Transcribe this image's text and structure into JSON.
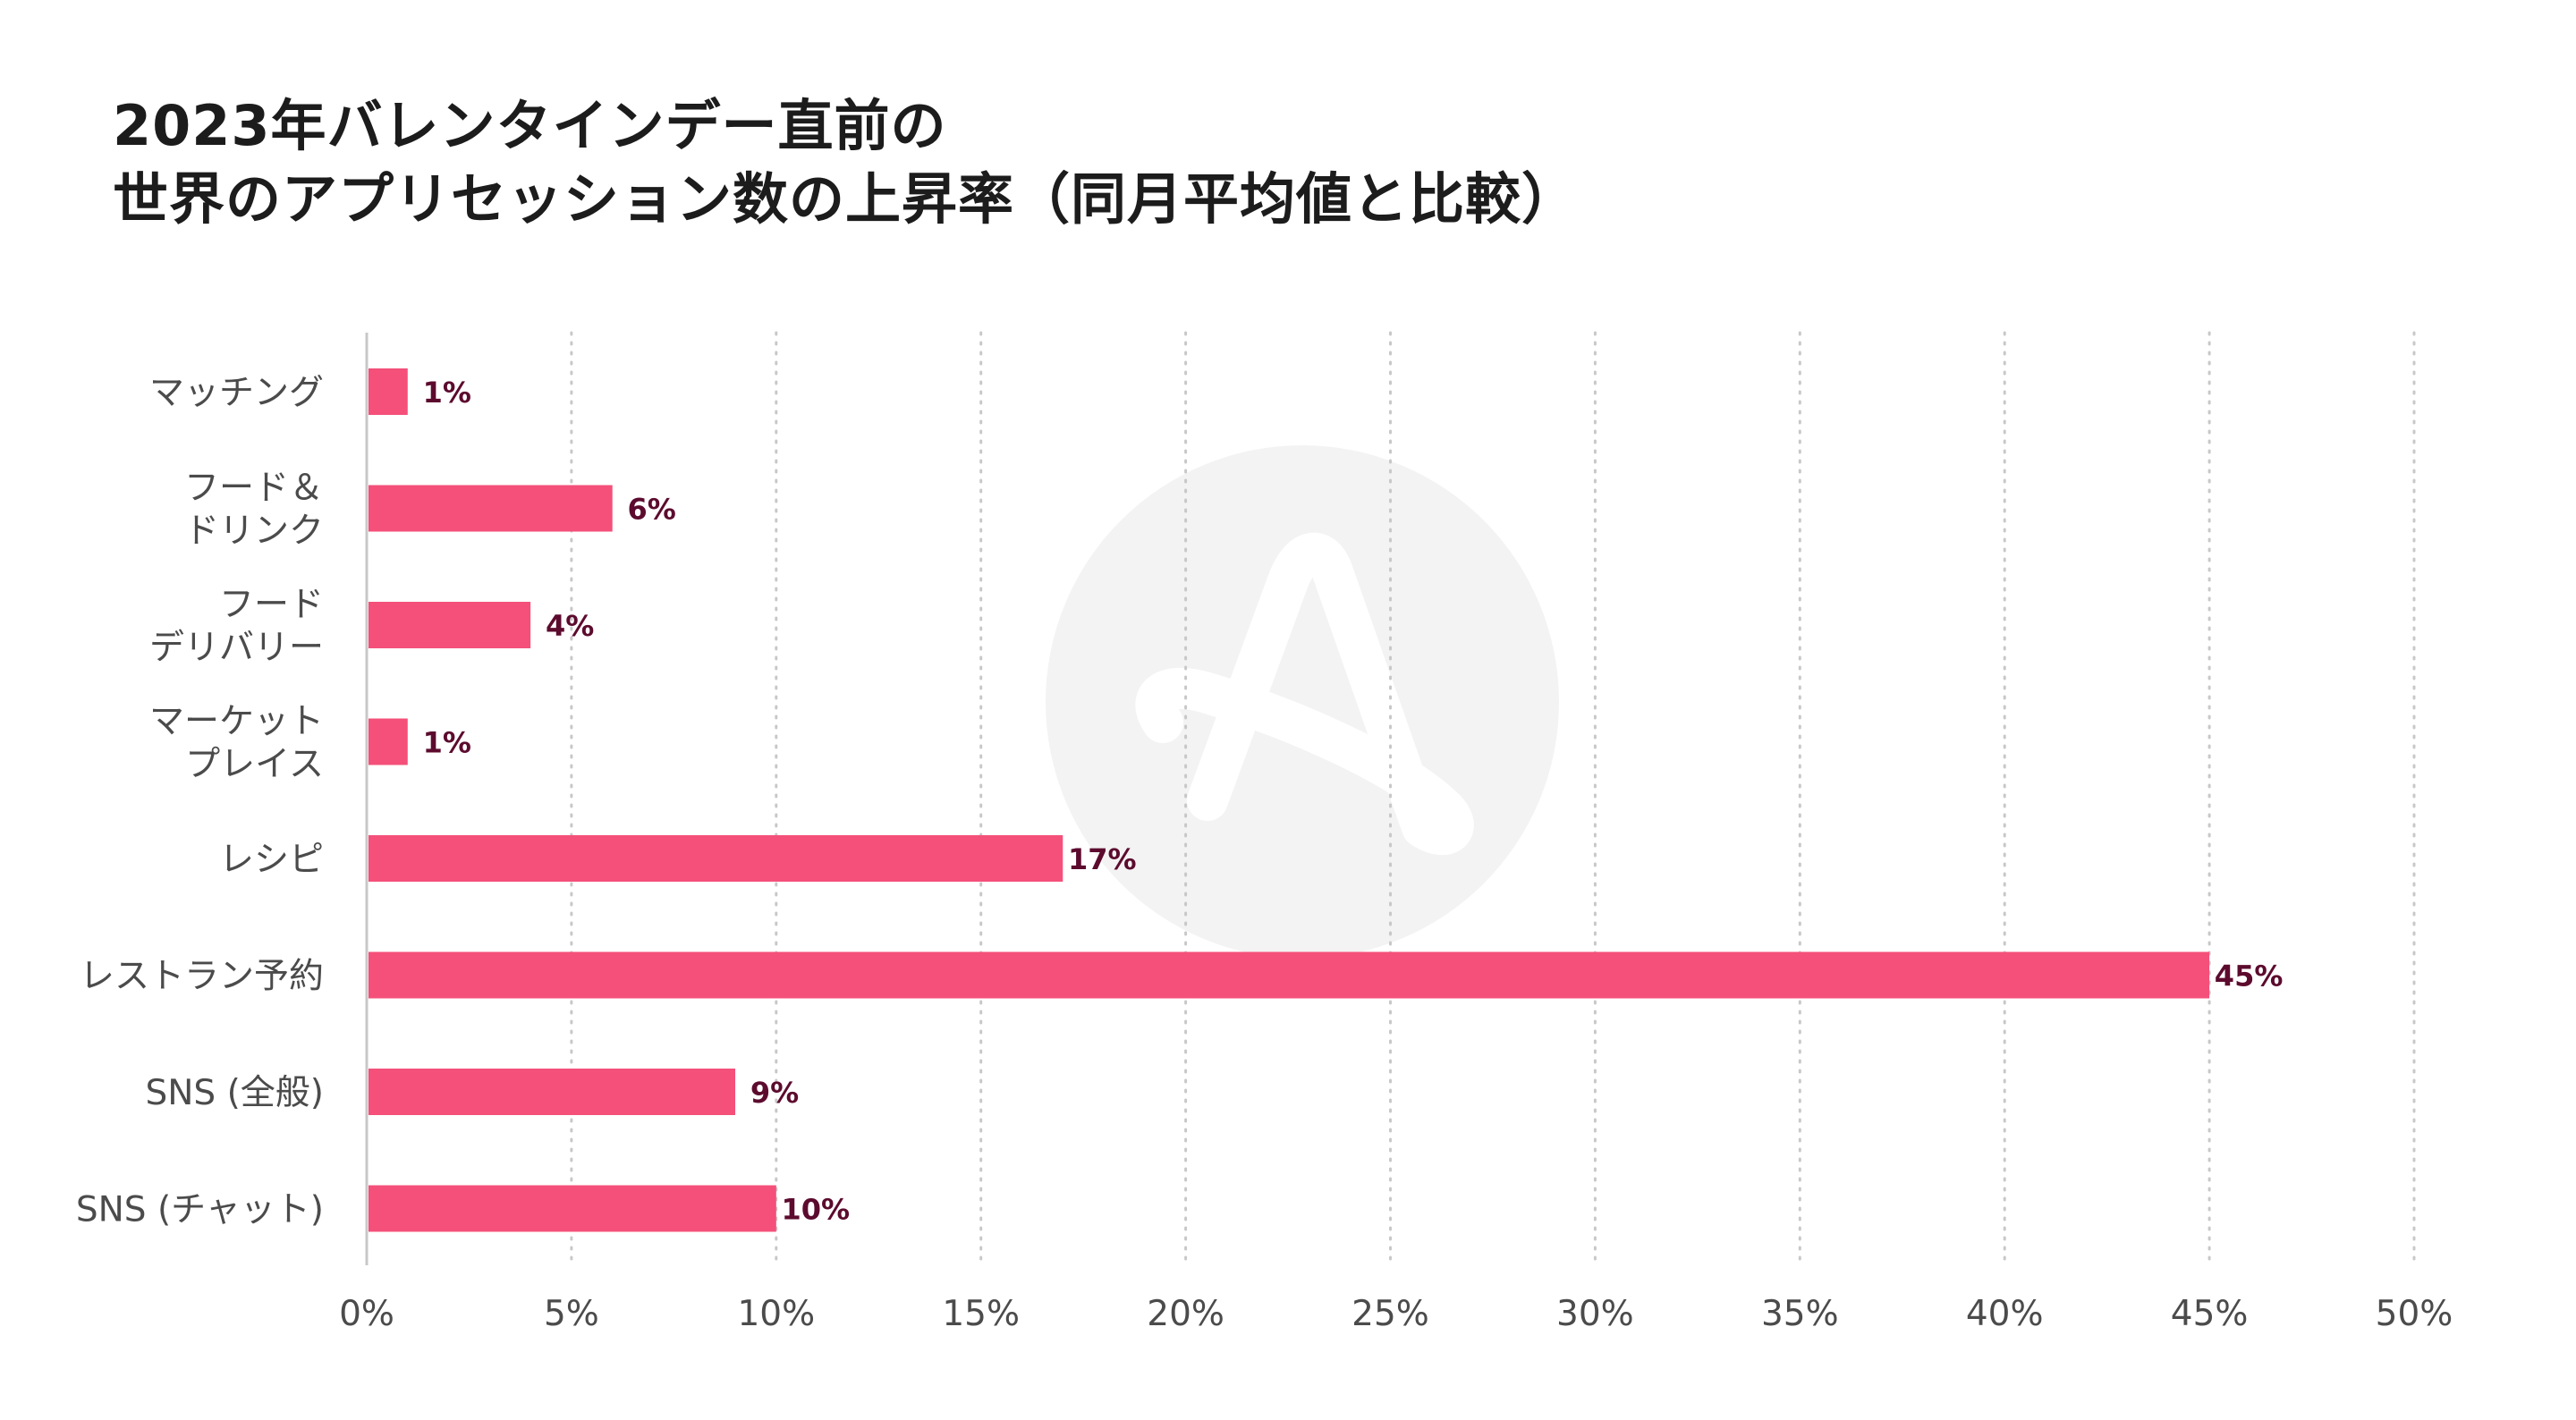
{
  "title_line1": "2023年バレンタインデー直前の",
  "title_line2": "世界のアプリセッション数の上昇率（同月平均値と比較）",
  "chart_data": {
    "type": "bar",
    "orientation": "horizontal",
    "categories": [
      [
        "マッチング"
      ],
      [
        "フード＆",
        "ドリンク"
      ],
      [
        "フード",
        "デリバリー"
      ],
      [
        "マーケット",
        "プレイス"
      ],
      [
        "レシピ"
      ],
      [
        "レストラン予約"
      ],
      [
        "SNS (全般)"
      ],
      [
        "SNS (チャット)"
      ]
    ],
    "values": [
      1,
      6,
      4,
      1,
      17,
      45,
      9,
      10
    ],
    "value_labels": [
      "1%",
      "6%",
      "4%",
      "1%",
      "17%",
      "45%",
      "9%",
      "10%"
    ],
    "xlim": [
      0,
      50
    ],
    "xticks": [
      0,
      5,
      10,
      15,
      20,
      25,
      30,
      35,
      40,
      45,
      50
    ],
    "xtick_labels": [
      "0%",
      "5%",
      "10%",
      "15%",
      "20%",
      "25%",
      "30%",
      "35%",
      "40%",
      "45%",
      "50%"
    ],
    "grid": "vertical dotted",
    "bar_color": "#f4507a",
    "label_color": "#5c0b2e",
    "axis_color": "#c8c8c8"
  }
}
